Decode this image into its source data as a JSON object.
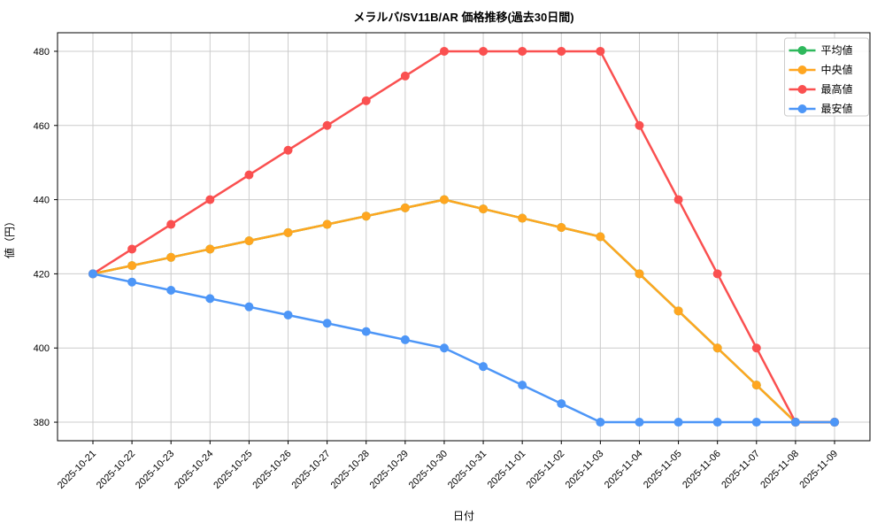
{
  "window": {
    "title": "メラルバ/SV11B/AR 価格推移(過去30日間)"
  },
  "chart_data": {
    "type": "line",
    "title": "メラルバ/SV11B/AR 価格推移(過去30日間)",
    "xlabel": "日付",
    "ylabel": "値（円）",
    "ylim": [
      375,
      485
    ],
    "yticks": [
      380,
      400,
      420,
      440,
      460,
      480
    ],
    "grid": true,
    "grid_color": "#cccccc",
    "background": "#ffffff",
    "legend_position": "upper right",
    "categories": [
      "2025-10-21",
      "2025-10-22",
      "2025-10-23",
      "2025-10-24",
      "2025-10-25",
      "2025-10-26",
      "2025-10-27",
      "2025-10-28",
      "2025-10-29",
      "2025-10-30",
      "2025-10-31",
      "2025-11-01",
      "2025-11-02",
      "2025-11-03",
      "2025-11-04",
      "2025-11-05",
      "2025-11-06",
      "2025-11-07",
      "2025-11-08",
      "2025-11-09"
    ],
    "series": [
      {
        "name": "平均値",
        "key": "mean",
        "color": "#2eb85c",
        "values": [
          420,
          422.22,
          424.44,
          426.67,
          428.89,
          431.11,
          433.33,
          435.56,
          437.78,
          440,
          437.5,
          435,
          432.5,
          430,
          420,
          410,
          400,
          390,
          380,
          380
        ],
        "note_visibility": "hidden exactly beneath 中央値 line"
      },
      {
        "name": "中央値",
        "key": "median",
        "color": "#ffa620",
        "values": [
          420,
          422.22,
          424.44,
          426.67,
          428.89,
          431.11,
          433.33,
          435.56,
          437.78,
          440,
          437.5,
          435,
          432.5,
          430,
          420,
          410,
          400,
          390,
          380,
          380
        ]
      },
      {
        "name": "最高値",
        "key": "max",
        "color": "#fa5050",
        "values": [
          420,
          426.67,
          433.33,
          440,
          446.67,
          453.33,
          460,
          466.67,
          473.33,
          480,
          480,
          480,
          480,
          480,
          460,
          440,
          420,
          400,
          380,
          380
        ]
      },
      {
        "name": "最安値",
        "key": "min",
        "color": "#4d96f7",
        "values": [
          420,
          417.78,
          415.56,
          413.33,
          411.11,
          408.89,
          406.67,
          404.44,
          402.22,
          400,
          395,
          390,
          385,
          380,
          380,
          380,
          380,
          380,
          380,
          380
        ]
      }
    ]
  }
}
